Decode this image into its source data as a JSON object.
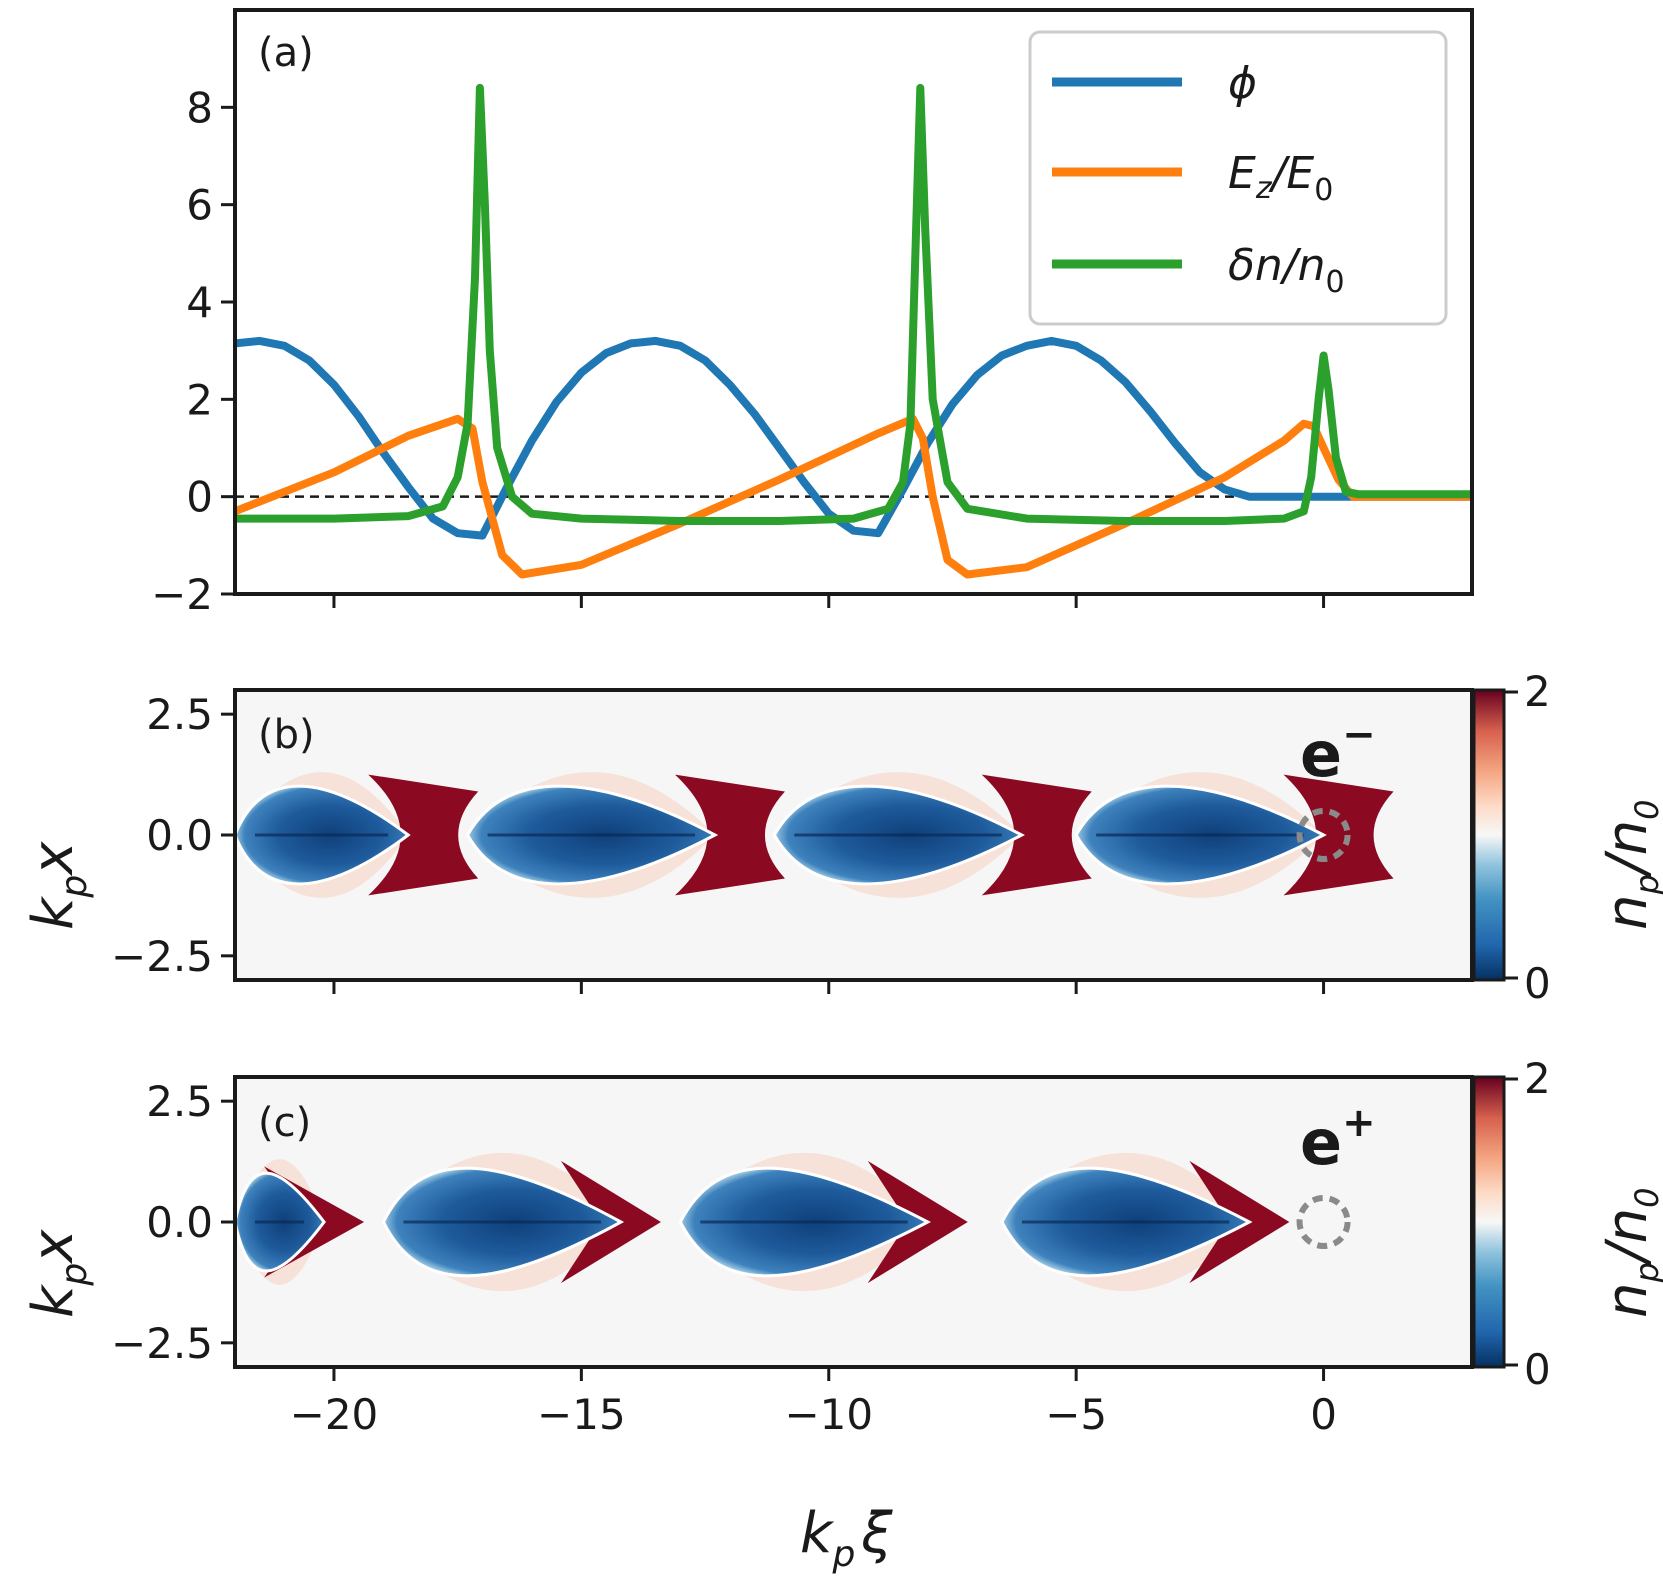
{
  "chart_data": [
    {
      "panel": "(a)",
      "type": "line",
      "xlim": [
        -22,
        3
      ],
      "ylim": [
        -2,
        10
      ],
      "yticks": [
        -2,
        0,
        2,
        4,
        6,
        8
      ],
      "ytick_labels": [
        "−2",
        "0",
        "2",
        "4",
        "6",
        "8"
      ],
      "xticks": [
        -20,
        -15,
        -10,
        -5,
        0
      ],
      "reference_line": {
        "y": 0,
        "style": "dashed"
      },
      "series": [
        {
          "name": "phi",
          "label": "ϕ",
          "color": "#1f77b4",
          "x": [
            -22,
            -21.5,
            -21,
            -20.5,
            -20,
            -19.5,
            -19,
            -18.5,
            -18,
            -17.5,
            -17,
            -16.5,
            -16,
            -15.5,
            -15,
            -14.5,
            -14,
            -13.5,
            -13,
            -12.5,
            -12,
            -11.5,
            -11,
            -10.5,
            -10,
            -9.5,
            -9,
            -8.5,
            -8,
            -7.5,
            -7,
            -6.5,
            -6,
            -5.5,
            -5,
            -4.5,
            -4,
            -3.5,
            -3,
            -2.5,
            -2,
            -1.5,
            -1,
            -0.5,
            0,
            0.5,
            1,
            2,
            3
          ],
          "y": [
            3.15,
            3.2,
            3.1,
            2.8,
            2.3,
            1.65,
            0.9,
            0.2,
            -0.45,
            -0.75,
            -0.8,
            0.2,
            1.15,
            1.95,
            2.55,
            2.95,
            3.15,
            3.2,
            3.1,
            2.8,
            2.3,
            1.7,
            1.0,
            0.3,
            -0.35,
            -0.7,
            -0.75,
            0.15,
            1.1,
            1.9,
            2.5,
            2.9,
            3.1,
            3.2,
            3.1,
            2.8,
            2.35,
            1.75,
            1.1,
            0.5,
            0.15,
            0.0,
            0.0,
            0.0,
            0.0,
            0.0,
            0.0,
            0.0,
            0.0
          ]
        },
        {
          "name": "Ez",
          "label": "E_z/E_0",
          "color": "#ff7f0e",
          "x": [
            -22,
            -20,
            -18.5,
            -17.5,
            -17.2,
            -17,
            -16.6,
            -16.2,
            -15,
            -13,
            -11,
            -9,
            -8.3,
            -8.1,
            -7.9,
            -7.6,
            -7.2,
            -6,
            -4,
            -2,
            -0.8,
            -0.4,
            -0.2,
            0,
            0.3,
            0.6,
            1,
            3
          ],
          "y": [
            -0.3,
            0.5,
            1.25,
            1.6,
            1.4,
            0.3,
            -1.2,
            -1.6,
            -1.4,
            -0.55,
            0.35,
            1.3,
            1.6,
            1.2,
            0.0,
            -1.3,
            -1.6,
            -1.45,
            -0.55,
            0.4,
            1.15,
            1.5,
            1.45,
            1.0,
            0.35,
            0.0,
            0.0,
            0.0
          ]
        },
        {
          "name": "dn",
          "label": "δn/n_0",
          "color": "#2ca02c",
          "x": [
            -22,
            -20,
            -18.5,
            -17.8,
            -17.5,
            -17.3,
            -17.15,
            -17.05,
            -16.95,
            -16.85,
            -16.7,
            -16.4,
            -16,
            -15,
            -13,
            -11,
            -9.5,
            -8.8,
            -8.5,
            -8.35,
            -8.25,
            -8.15,
            -8.05,
            -7.9,
            -7.6,
            -7.2,
            -6,
            -4,
            -2,
            -0.8,
            -0.4,
            -0.25,
            -0.1,
            0,
            0.1,
            0.25,
            0.45,
            0.7,
            1,
            3
          ],
          "y": [
            -0.45,
            -0.45,
            -0.4,
            -0.2,
            0.4,
            1.5,
            4.5,
            8.4,
            6.0,
            3.0,
            1.0,
            0.0,
            -0.35,
            -0.45,
            -0.5,
            -0.5,
            -0.45,
            -0.25,
            0.3,
            1.5,
            5.0,
            8.4,
            5.5,
            2.0,
            0.3,
            -0.25,
            -0.45,
            -0.5,
            -0.5,
            -0.45,
            -0.3,
            0.4,
            2.0,
            2.9,
            2.2,
            0.8,
            0.1,
            0.05,
            0.05,
            0.05
          ]
        }
      ],
      "legend": {
        "position": "top-right",
        "entries": [
          "ϕ",
          "E_z/E_0",
          "δn/n_0"
        ]
      }
    },
    {
      "panel": "(b)",
      "type": "heatmap",
      "species": "e−",
      "xlim": [
        -22,
        3
      ],
      "ylim": [
        -3,
        3
      ],
      "yticks": [
        2.5,
        0.0,
        -2.5
      ],
      "ytick_labels": [
        "2.5",
        "0.0",
        "−2.5"
      ],
      "xticks": [
        -20,
        -15,
        -10,
        -5,
        0
      ],
      "ylabel": "k_p x",
      "colorbar": {
        "label": "n_p/n_0",
        "range": [
          0,
          2
        ],
        "tick_labels": [
          "2",
          "0"
        ],
        "colormap": "RdBu_r"
      },
      "cavities": [
        {
          "x_start": -22,
          "x_end": -18.5,
          "half_width": 1.0
        },
        {
          "x_start": -17.3,
          "x_end": -12.3,
          "half_width": 1.0
        },
        {
          "x_start": -11.1,
          "x_end": -6.1,
          "half_width": 1.0
        },
        {
          "x_start": -5.0,
          "x_end": 0.0,
          "half_width": 1.0
        }
      ],
      "annotation": "dashed circle at beam head, x = 0"
    },
    {
      "panel": "(c)",
      "type": "heatmap",
      "species": "e+",
      "xlim": [
        -22,
        3
      ],
      "ylim": [
        -3,
        3
      ],
      "yticks": [
        2.5,
        0.0,
        -2.5
      ],
      "ytick_labels": [
        "2.5",
        "0.0",
        "−2.5"
      ],
      "xticks": [
        -20,
        -15,
        -10,
        -5,
        0
      ],
      "xtick_labels": [
        "−20",
        "−15",
        "−10",
        "−5",
        "0"
      ],
      "xlabel": "k_p ξ",
      "ylabel": "k_p x",
      "colorbar": {
        "label": "n_p/n_0",
        "range": [
          0,
          2
        ],
        "tick_labels": [
          "2",
          "0"
        ],
        "colormap": "RdBu_r"
      },
      "cavities": [
        {
          "x_start": -22,
          "x_end": -20.2,
          "half_width": 1.0
        },
        {
          "x_start": -19.0,
          "x_end": -14.2,
          "half_width": 1.1
        },
        {
          "x_start": -13.0,
          "x_end": -8.0,
          "half_width": 1.1
        },
        {
          "x_start": -6.5,
          "x_end": -1.5,
          "half_width": 1.1
        }
      ],
      "annotation": "dashed circle at beam head, x = 0"
    }
  ],
  "labels": {
    "panel_a": "(a)",
    "panel_b": "(b)",
    "panel_c": "(c)",
    "species_b": "e",
    "species_b_sup": "−",
    "species_c": "e",
    "species_c_sup": "+",
    "legend_phi": "ϕ",
    "legend_ez_main": "E",
    "legend_ez_sub": "z",
    "legend_ez_tail": "/E",
    "legend_ez_sub2": "0",
    "legend_dn_main": "δn/n",
    "legend_dn_sub": "0",
    "xlabel_main": "k",
    "xlabel_sub": "p",
    "xlabel_tail": "ξ",
    "ylabel_main": "k",
    "ylabel_sub": "p",
    "ylabel_tail": "x",
    "cbar_main": "n",
    "cbar_sub": "p",
    "cbar_tail": "/n",
    "cbar_sub2": "0",
    "cbar_top": "2",
    "cbar_bottom": "0"
  }
}
